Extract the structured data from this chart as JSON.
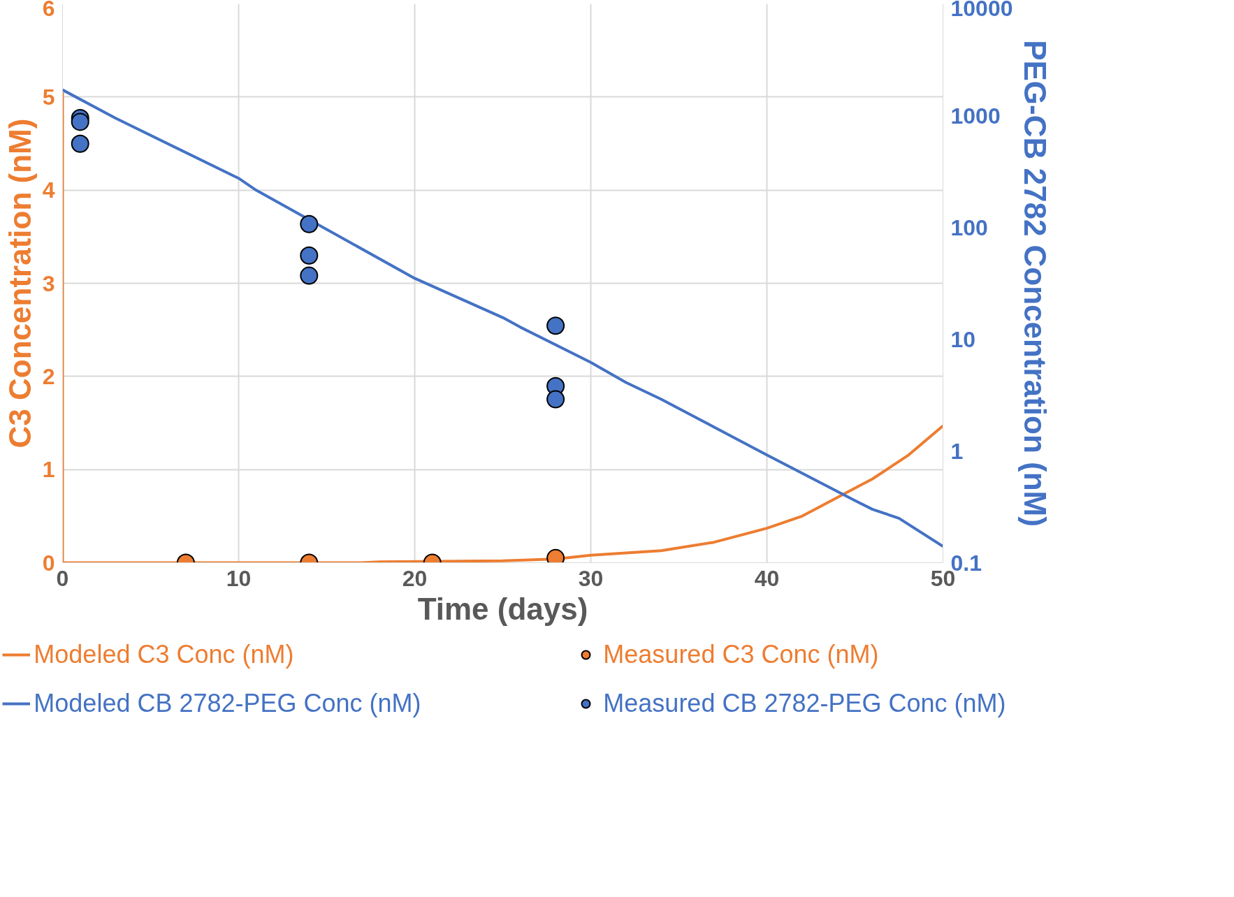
{
  "chart_data": {
    "type": "line",
    "xlabel": "Time (days)",
    "ylabel": "C3 Concentration (nM)",
    "y2label": "PEG-CB 2782 Concentration (nM)",
    "xlim": [
      0,
      50
    ],
    "xticks": [
      0,
      10,
      20,
      30,
      40,
      50
    ],
    "ylim": [
      0,
      6
    ],
    "yticks": [
      0,
      1,
      2,
      3,
      4,
      5,
      6
    ],
    "y2lim": [
      0.1,
      10000
    ],
    "y2ticks": [
      0.1,
      1,
      10,
      100,
      1000,
      10000
    ],
    "log": "y2",
    "grid": true,
    "legend": "bottom",
    "series": [
      {
        "type": "line",
        "name": "Modeled C3 Conc (nM)",
        "color": "#ed7d31",
        "x": [
          0,
          0,
          5,
          10,
          17,
          18,
          25,
          28,
          29,
          30,
          34,
          37,
          40,
          42,
          43,
          45,
          46,
          48,
          50
        ],
        "values": [
          5.05,
          0,
          0,
          0,
          0,
          0.01,
          0.02,
          0.04,
          0.06,
          0.08,
          0.13,
          0.22,
          0.37,
          0.5,
          0.6,
          0.8,
          0.9,
          1.15,
          1.47
        ]
      },
      {
        "type": "scatter",
        "name": "Measured C3 Conc (nM)",
        "color": "#ed7d31",
        "marker": "circle",
        "x": [
          7,
          14,
          21,
          28
        ],
        "values": [
          0,
          0,
          0,
          0.05
        ]
      },
      {
        "type": "line",
        "name": "Modeled CB 2782-PEG Conc (nM)",
        "color": "#4472c4",
        "axis": "y2",
        "x": [
          0,
          3,
          10,
          11,
          20,
          25,
          26,
          30,
          32,
          34,
          40,
          45,
          46,
          47.5,
          50
        ],
        "values": [
          1700,
          950,
          275,
          215,
          35,
          15.6,
          12.8,
          6.2,
          4.1,
          2.9,
          0.92,
          0.36,
          0.3,
          0.25,
          0.14
        ]
      },
      {
        "type": "scatter",
        "name": "Measured CB 2782-PEG Conc (nM)",
        "color": "#4472c4",
        "marker": "circle",
        "axis": "y2",
        "x": [
          1,
          1,
          1,
          14,
          14,
          14,
          28,
          28,
          28
        ],
        "values": [
          950,
          880,
          560,
          107,
          56,
          37,
          13.2,
          3.8,
          2.9
        ]
      }
    ]
  }
}
